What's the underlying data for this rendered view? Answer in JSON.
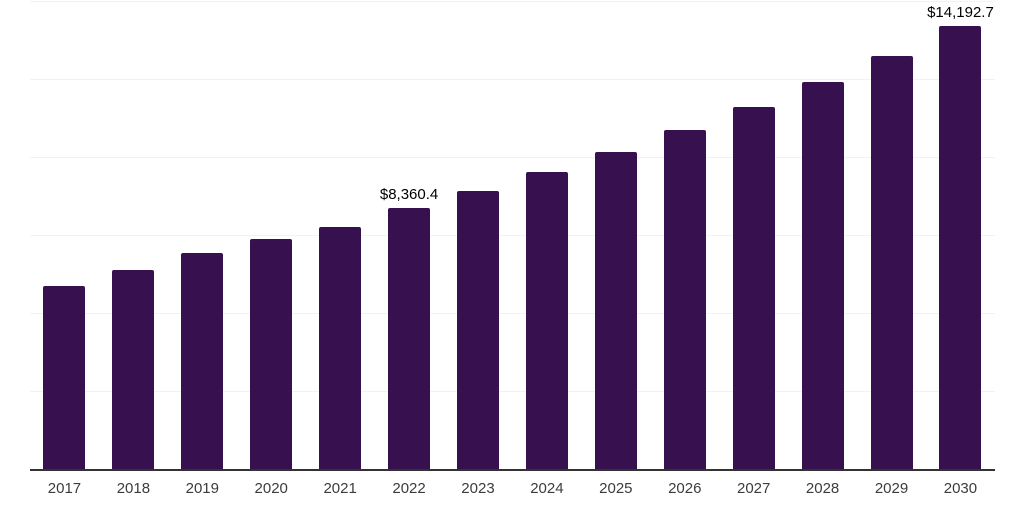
{
  "chart_data": {
    "type": "bar",
    "title": "",
    "xlabel": "",
    "ylabel": "",
    "categories": [
      "2017",
      "2018",
      "2019",
      "2020",
      "2021",
      "2022",
      "2023",
      "2024",
      "2025",
      "2026",
      "2027",
      "2028",
      "2029",
      "2030"
    ],
    "values": [
      5870,
      6375,
      6910,
      7360,
      7765,
      8360.4,
      8905,
      9505,
      10155,
      10860,
      11590,
      12390,
      13240,
      14192.7
    ],
    "data_labels": [
      "",
      "",
      "",
      "",
      "",
      "$8,360.4",
      "",
      "",
      "",
      "",
      "",
      "",
      "",
      "$14,192.7"
    ],
    "ylim": [
      0,
      15000
    ],
    "gridline_step": 2500,
    "grid": "horizontal",
    "legend_position": "none",
    "yaxis_tick_labels_visible": false,
    "colors": {
      "bar": "#37114F",
      "axis_line": "#333333",
      "gridline": "#F2F2F2",
      "data_label": "#000000",
      "tick_label": "#3C3C3C",
      "background": "#FFFFFF"
    }
  }
}
